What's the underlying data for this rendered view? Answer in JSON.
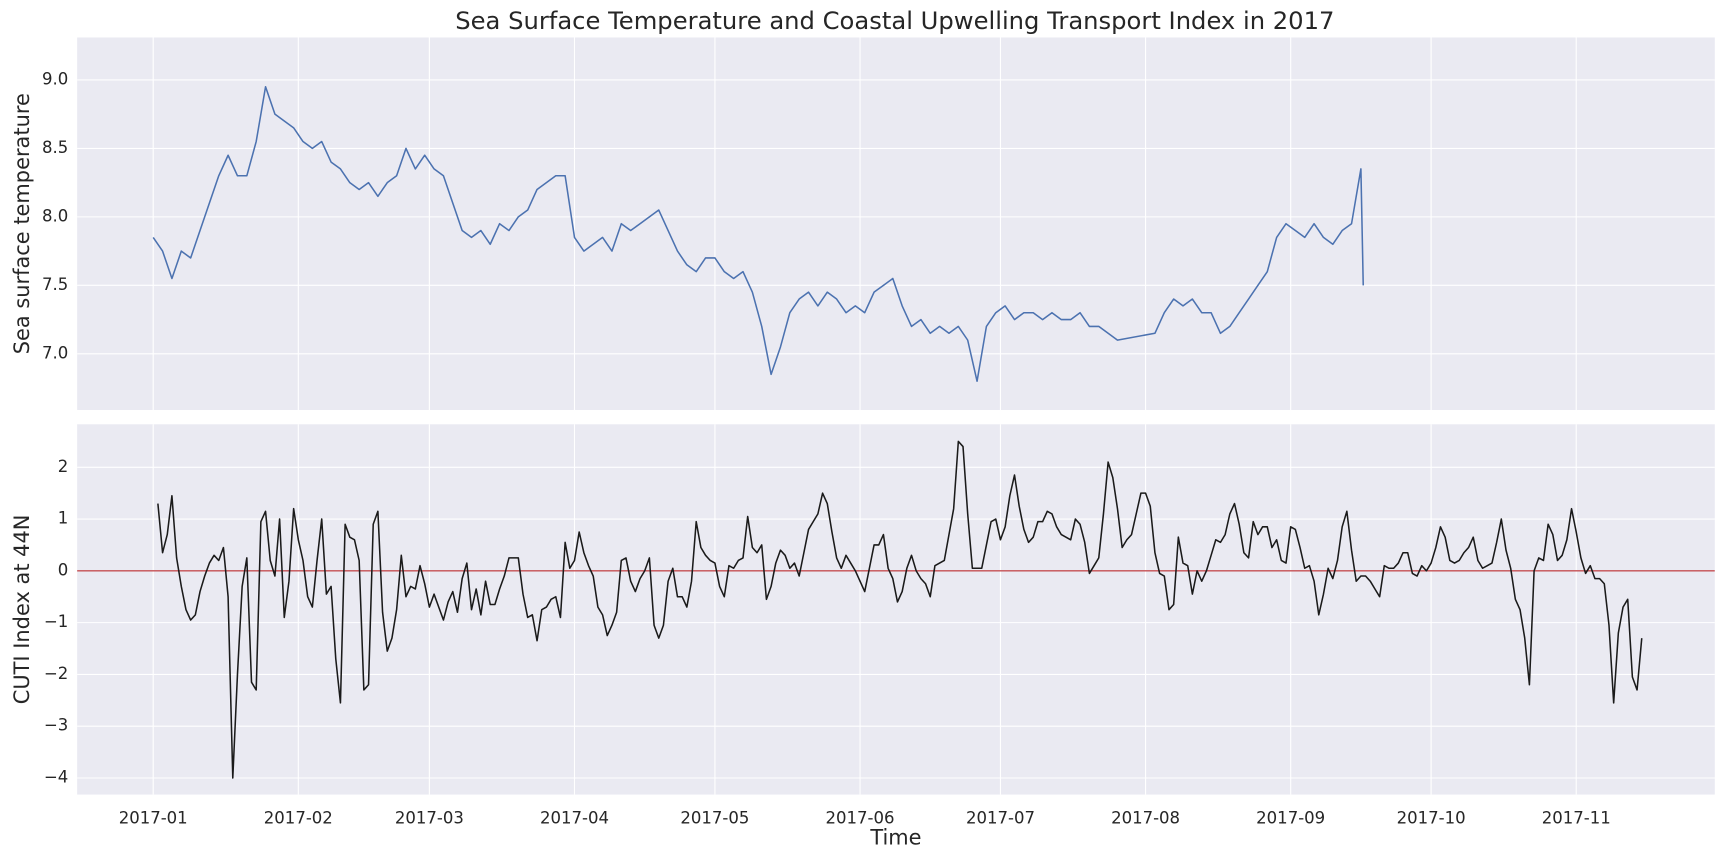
{
  "chart_data": [
    {
      "type": "line",
      "title": "Sea Surface Temperature and Coastal Upwelling Transport Index in 2017",
      "ylabel": "Sea surface temperature",
      "color": "#4c72b0",
      "grid": true,
      "show_xticklabels": false,
      "xlim": [
        -16.25,
        333.6
      ],
      "ylim": [
        6.59,
        9.31
      ],
      "xticks": [
        0,
        31,
        59,
        90,
        120,
        151,
        181,
        212,
        243,
        273,
        304
      ],
      "yticks": [
        {
          "value": 7,
          "label": "7.0"
        },
        7.5,
        {
          "value": 8,
          "label": "8.0"
        },
        8.5,
        {
          "value": 9,
          "label": "9.0"
        }
      ],
      "x": [
        0,
        2,
        4,
        6,
        8,
        10,
        12,
        14,
        16,
        18,
        20,
        22,
        24,
        26,
        28,
        30,
        32,
        34,
        36,
        38,
        40,
        42,
        44,
        46,
        48,
        50,
        52,
        54,
        56,
        58,
        60,
        62,
        64,
        66,
        68,
        70,
        72,
        74,
        76,
        78,
        80,
        82,
        84,
        86,
        88,
        90,
        92,
        94,
        96,
        98,
        100,
        102,
        104,
        106,
        108,
        110,
        112,
        114,
        116,
        118,
        120,
        122,
        124,
        126,
        128,
        130,
        132,
        134,
        136,
        138,
        140,
        142,
        144,
        146,
        148,
        150,
        152,
        154,
        156,
        158,
        160,
        162,
        164,
        166,
        168,
        170,
        172,
        174,
        176,
        178,
        180,
        182,
        184,
        186,
        188,
        190,
        192,
        194,
        196,
        198,
        200,
        202,
        204,
        206,
        214,
        216,
        218,
        220,
        222,
        224,
        226,
        228,
        230,
        232,
        234,
        236,
        238,
        240,
        242,
        244,
        246,
        248,
        250,
        252,
        254,
        256,
        258,
        258.5
      ],
      "values": [
        7.85,
        7.75,
        7.55,
        7.75,
        7.7,
        7.9,
        8.1,
        8.3,
        8.45,
        8.3,
        8.3,
        8.55,
        8.95,
        8.75,
        8.7,
        8.65,
        8.55,
        8.5,
        8.55,
        8.4,
        8.35,
        8.25,
        8.2,
        8.25,
        8.15,
        8.25,
        8.3,
        8.5,
        8.35,
        8.45,
        8.35,
        8.3,
        8.1,
        7.9,
        7.85,
        7.9,
        7.8,
        7.95,
        7.9,
        8.0,
        8.05,
        8.2,
        8.25,
        8.3,
        8.3,
        7.85,
        7.75,
        7.8,
        7.85,
        7.75,
        7.95,
        7.9,
        7.95,
        8.0,
        8.05,
        7.9,
        7.75,
        7.65,
        7.6,
        7.7,
        7.7,
        7.6,
        7.55,
        7.6,
        7.45,
        7.2,
        6.85,
        7.05,
        7.3,
        7.4,
        7.45,
        7.35,
        7.45,
        7.4,
        7.3,
        7.35,
        7.3,
        7.45,
        7.5,
        7.55,
        7.35,
        7.2,
        7.25,
        7.15,
        7.2,
        7.15,
        7.2,
        7.1,
        6.8,
        7.2,
        7.3,
        7.35,
        7.25,
        7.3,
        7.3,
        7.25,
        7.3,
        7.25,
        7.25,
        7.3,
        7.2,
        7.2,
        7.15,
        7.1,
        7.15,
        7.3,
        7.4,
        7.35,
        7.4,
        7.3,
        7.3,
        7.15,
        7.2,
        7.3,
        7.4,
        7.5,
        7.6,
        7.85,
        7.95,
        7.9,
        7.85,
        7.95,
        7.85,
        7.8,
        7.9,
        7.95,
        8.35,
        7.5
      ]
    },
    {
      "type": "line",
      "xlabel": "Time",
      "ylabel": "CUTI Index at 44N",
      "color": "#1a1a1a",
      "grid": true,
      "hline": 0,
      "hline_color": "#c44e52",
      "xlim": [
        -16.25,
        333.6
      ],
      "ylim": [
        -4.32,
        2.83
      ],
      "xticks": [
        {
          "value": 0,
          "label": "2017-01"
        },
        {
          "value": 31,
          "label": "2017-02"
        },
        {
          "value": 59,
          "label": "2017-03"
        },
        {
          "value": 90,
          "label": "2017-04"
        },
        {
          "value": 120,
          "label": "2017-05"
        },
        {
          "value": 151,
          "label": "2017-06"
        },
        {
          "value": 181,
          "label": "2017-07"
        },
        {
          "value": 212,
          "label": "2017-08"
        },
        {
          "value": 243,
          "label": "2017-09"
        },
        {
          "value": 273,
          "label": "2017-10"
        },
        {
          "value": 304,
          "label": "2017-11"
        }
      ],
      "yticks": [
        {
          "value": -4,
          "label": "−4"
        },
        {
          "value": -3,
          "label": "−3"
        },
        {
          "value": -2,
          "label": "−2"
        },
        {
          "value": -1,
          "label": "−1"
        },
        0,
        1,
        2
      ],
      "x": [
        1,
        2,
        3,
        4,
        5,
        6,
        7,
        8,
        9,
        10,
        11,
        12,
        13,
        14,
        15,
        16,
        17,
        18,
        19,
        20,
        21,
        22,
        23,
        24,
        25,
        26,
        27,
        28,
        29,
        30,
        31,
        32,
        33,
        34,
        35,
        36,
        37,
        38,
        39,
        40,
        41,
        42,
        43,
        44,
        45,
        46,
        47,
        48,
        49,
        50,
        51,
        52,
        53,
        54,
        55,
        56,
        57,
        58,
        59,
        60,
        61,
        62,
        63,
        64,
        65,
        66,
        67,
        68,
        69,
        70,
        71,
        72,
        73,
        74,
        75,
        76,
        77,
        78,
        79,
        80,
        81,
        82,
        83,
        84,
        85,
        86,
        87,
        88,
        89,
        90,
        91,
        92,
        93,
        94,
        95,
        96,
        97,
        98,
        99,
        100,
        101,
        102,
        103,
        104,
        105,
        106,
        107,
        108,
        109,
        110,
        111,
        112,
        113,
        114,
        115,
        116,
        117,
        118,
        119,
        120,
        121,
        122,
        123,
        124,
        125,
        126,
        127,
        128,
        129,
        130,
        131,
        132,
        133,
        134,
        135,
        136,
        137,
        138,
        139,
        140,
        141,
        142,
        143,
        144,
        145,
        146,
        147,
        148,
        149,
        150,
        151,
        152,
        153,
        154,
        155,
        156,
        157,
        158,
        159,
        160,
        161,
        162,
        163,
        164,
        165,
        166,
        167,
        168,
        169,
        170,
        171,
        172,
        173,
        174,
        175,
        176,
        177,
        178,
        179,
        180,
        181,
        182,
        183,
        184,
        185,
        186,
        187,
        188,
        189,
        190,
        191,
        192,
        193,
        194,
        195,
        196,
        197,
        198,
        199,
        200,
        201,
        202,
        203,
        204,
        205,
        206,
        207,
        208,
        209,
        210,
        211,
        212,
        213,
        214,
        215,
        216,
        217,
        218,
        219,
        220,
        221,
        222,
        223,
        224,
        225,
        226,
        227,
        228,
        229,
        230,
        231,
        232,
        233,
        234,
        235,
        236,
        237,
        238,
        239,
        240,
        241,
        242,
        243,
        244,
        245,
        246,
        247,
        248,
        249,
        250,
        251,
        252,
        253,
        254,
        255,
        256,
        257,
        258,
        259,
        260,
        261,
        262,
        263,
        264,
        265,
        266,
        267,
        268,
        269,
        270,
        271,
        272,
        273,
        274,
        275,
        276,
        277,
        278,
        279,
        280,
        281,
        282,
        283,
        284,
        285,
        286,
        287,
        288,
        289,
        290,
        291,
        292,
        293,
        294,
        295,
        296,
        297,
        298,
        299,
        300,
        301,
        302,
        303,
        304,
        305,
        306,
        307,
        308,
        309,
        310,
        311,
        312,
        313,
        314,
        315,
        316,
        317,
        318
      ],
      "values": [
        1.3,
        0.35,
        0.7,
        1.45,
        0.25,
        -0.3,
        -0.75,
        -0.95,
        -0.85,
        -0.4,
        -0.1,
        0.15,
        0.3,
        0.2,
        0.45,
        -0.5,
        -4.0,
        -2.0,
        -0.3,
        0.25,
        -2.15,
        -2.3,
        0.95,
        1.15,
        0.2,
        -0.1,
        1.0,
        -0.9,
        -0.2,
        1.2,
        0.6,
        0.2,
        -0.5,
        -0.7,
        0.2,
        1.0,
        -0.45,
        -0.3,
        -1.7,
        -2.55,
        0.9,
        0.65,
        0.6,
        0.2,
        -2.3,
        -2.2,
        0.9,
        1.15,
        -0.8,
        -1.55,
        -1.3,
        -0.75,
        0.3,
        -0.5,
        -0.3,
        -0.35,
        0.1,
        -0.25,
        -0.7,
        -0.45,
        -0.7,
        -0.95,
        -0.6,
        -0.4,
        -0.8,
        -0.15,
        0.15,
        -0.75,
        -0.35,
        -0.85,
        -0.2,
        -0.65,
        -0.65,
        -0.35,
        -0.1,
        0.25,
        0.25,
        0.25,
        -0.45,
        -0.9,
        -0.85,
        -1.35,
        -0.75,
        -0.7,
        -0.55,
        -0.5,
        -0.9,
        0.55,
        0.05,
        0.2,
        0.75,
        0.35,
        0.1,
        -0.1,
        -0.7,
        -0.85,
        -1.25,
        -1.05,
        -0.8,
        0.2,
        0.25,
        -0.2,
        -0.4,
        -0.15,
        0.0,
        0.25,
        -1.05,
        -1.3,
        -1.05,
        -0.2,
        0.05,
        -0.5,
        -0.5,
        -0.7,
        -0.2,
        0.95,
        0.45,
        0.3,
        0.2,
        0.15,
        -0.3,
        -0.5,
        0.1,
        0.05,
        0.2,
        0.25,
        1.05,
        0.45,
        0.35,
        0.5,
        -0.55,
        -0.3,
        0.15,
        0.4,
        0.3,
        0.05,
        0.15,
        -0.1,
        0.35,
        0.8,
        0.95,
        1.1,
        1.5,
        1.3,
        0.75,
        0.25,
        0.05,
        0.3,
        0.15,
        0.0,
        -0.2,
        -0.4,
        0.05,
        0.5,
        0.5,
        0.7,
        0.05,
        -0.15,
        -0.6,
        -0.4,
        0.05,
        0.3,
        0.0,
        -0.15,
        -0.25,
        -0.5,
        0.1,
        0.15,
        0.2,
        0.7,
        1.2,
        2.5,
        2.4,
        1.1,
        0.05,
        0.05,
        0.05,
        0.5,
        0.95,
        1.0,
        0.6,
        0.85,
        1.45,
        1.85,
        1.25,
        0.8,
        0.55,
        0.65,
        0.95,
        0.95,
        1.15,
        1.1,
        0.85,
        0.7,
        0.65,
        0.6,
        1.0,
        0.9,
        0.55,
        -0.05,
        0.1,
        0.25,
        1.1,
        2.1,
        1.8,
        1.2,
        0.45,
        0.6,
        0.7,
        1.1,
        1.5,
        1.5,
        1.25,
        0.35,
        -0.05,
        -0.1,
        -0.75,
        -0.65,
        0.65,
        0.15,
        0.1,
        -0.45,
        0.0,
        -0.2,
        0.0,
        0.3,
        0.6,
        0.55,
        0.7,
        1.1,
        1.3,
        0.9,
        0.35,
        0.25,
        0.95,
        0.7,
        0.85,
        0.85,
        0.45,
        0.6,
        0.2,
        0.15,
        0.85,
        0.8,
        0.45,
        0.05,
        0.1,
        -0.2,
        -0.85,
        -0.45,
        0.05,
        -0.15,
        0.2,
        0.85,
        1.15,
        0.4,
        -0.2,
        -0.1,
        -0.1,
        -0.2,
        -0.35,
        -0.5,
        0.1,
        0.05,
        0.05,
        0.15,
        0.35,
        0.35,
        -0.05,
        -0.1,
        0.1,
        0.0,
        0.15,
        0.45,
        0.85,
        0.65,
        0.2,
        0.15,
        0.2,
        0.35,
        0.45,
        0.65,
        0.2,
        0.05,
        0.1,
        0.15,
        0.55,
        1.0,
        0.4,
        0.05,
        -0.55,
        -0.75,
        -1.3,
        -2.2,
        0.0,
        0.25,
        0.2,
        0.9,
        0.7,
        0.2,
        0.3,
        0.6,
        1.2,
        0.75,
        0.25,
        -0.05,
        0.1,
        -0.15,
        -0.15,
        -0.25,
        -1.05,
        -2.55,
        -1.2,
        -0.7,
        -0.55,
        -2.05,
        -2.3,
        -1.3
      ]
    }
  ]
}
